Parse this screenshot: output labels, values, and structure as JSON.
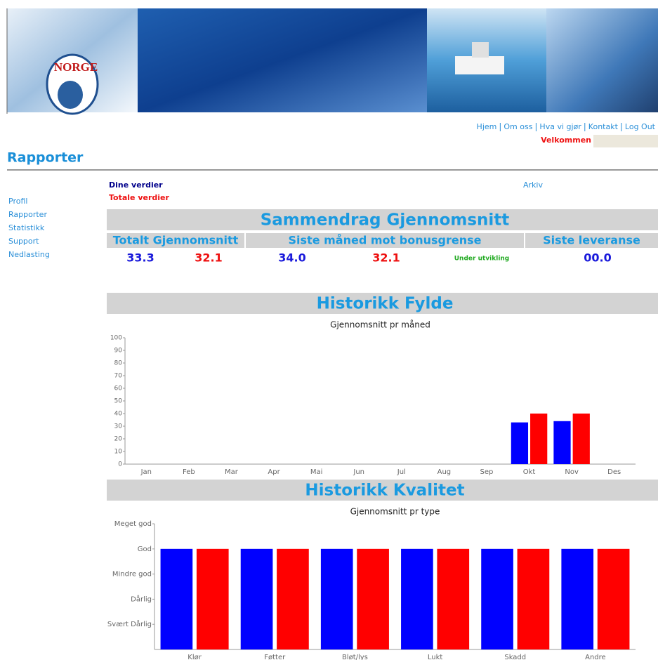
{
  "header": {
    "logo": "NORGE"
  },
  "nav": {
    "links": [
      "Hjem",
      "Om oss",
      "Hva vi gjør",
      "Kontakt",
      "Log Out"
    ],
    "welcome": "Velkommen"
  },
  "page_title": "Rapporter",
  "sidebar": [
    "Profil",
    "Rapporter",
    "Statistikk",
    "Support",
    "Nedlasting"
  ],
  "legend": {
    "own": "Dine verdier",
    "total": "Totale verdier"
  },
  "archive": "Arkiv",
  "summary": {
    "title": "Sammendrag Gjennomsnitt",
    "headers": [
      "Totalt Gjennomsnitt",
      "Siste måned mot bonusgrense",
      "Siste leveranse"
    ],
    "values": [
      "33.3",
      "32.1",
      "34.0",
      "32.1",
      "Under utvikling",
      "00.0"
    ],
    "colors": [
      "#1a1adb",
      "#ee1111",
      "#1a1adb",
      "#ee1111",
      "#22aa22",
      "#1a1adb"
    ]
  },
  "charts": [
    {
      "type": "bar",
      "section": "Historikk Fylde",
      "title": "Gjennomsnitt pr måned",
      "categories": [
        "Jan",
        "Feb",
        "Mar",
        "Apr",
        "Mai",
        "Jun",
        "Jul",
        "Aug",
        "Sep",
        "Okt",
        "Nov",
        "Des"
      ],
      "series": [
        {
          "color": "#0000ff",
          "values": [
            null,
            null,
            null,
            null,
            null,
            null,
            null,
            null,
            null,
            33,
            34,
            null
          ]
        },
        {
          "color": "#ff0000",
          "values": [
            null,
            null,
            null,
            null,
            null,
            null,
            null,
            null,
            null,
            40,
            40,
            null
          ]
        }
      ],
      "ylim": [
        0,
        100
      ],
      "yticks": [
        0,
        10,
        20,
        30,
        40,
        50,
        60,
        70,
        80,
        90,
        100
      ]
    },
    {
      "type": "bar",
      "section": "Historikk Kvalitet",
      "title": "Gjennomsnitt pr type",
      "categories": [
        "Klør",
        "Føtter",
        "Bløt/lys",
        "Lukt",
        "Skadd",
        "Andre"
      ],
      "series": [
        {
          "color": "#0000ff",
          "values": [
            4,
            4,
            4,
            4,
            4,
            4
          ]
        },
        {
          "color": "#ff0000",
          "values": [
            4,
            4,
            4,
            4,
            4,
            4
          ]
        }
      ],
      "ylim": [
        0,
        5
      ],
      "yticks": [
        {
          "value": 1,
          "label": "Svært Dårlig"
        },
        {
          "value": 2,
          "label": "Dårlig"
        },
        {
          "value": 3,
          "label": "Mindre god"
        },
        {
          "value": 4,
          "label": "God"
        },
        {
          "value": 5,
          "label": "Meget god"
        }
      ]
    }
  ]
}
